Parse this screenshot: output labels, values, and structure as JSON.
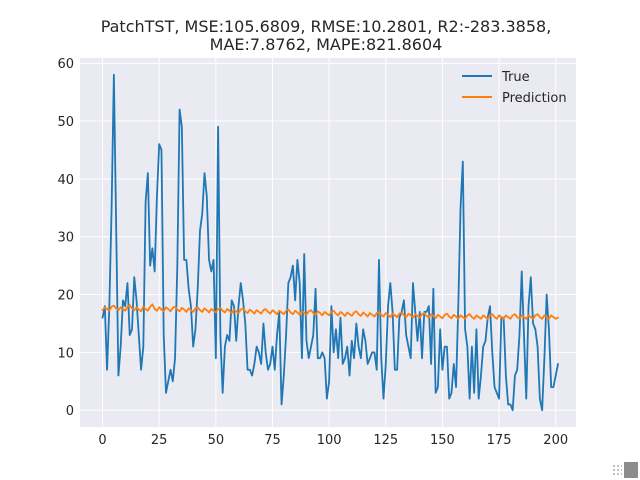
{
  "chart_data": {
    "type": "line",
    "title_lines": [
      "PatchTST, MSE:105.6809, RMSE:10.2801, R2:-283.3858,",
      "MAE:7.8762, MAPE:821.8604"
    ],
    "xlabel": "",
    "ylabel": "",
    "xlim": [
      -9.95,
      208.95
    ],
    "ylim": [
      -2.9,
      60.9
    ],
    "xticks": [
      0,
      25,
      50,
      75,
      100,
      125,
      150,
      175,
      200
    ],
    "yticks": [
      0,
      10,
      20,
      30,
      40,
      50,
      60
    ],
    "grid": true,
    "legend_position": "top-right",
    "colors": {
      "True": "#1f77b4",
      "Prediction": "#ff7f0e",
      "plot_background": "#eaeaf2",
      "grid": "#ffffff"
    },
    "series": [
      {
        "name": "True",
        "values": [
          16,
          18,
          7,
          18,
          35,
          58,
          32,
          6,
          11,
          19,
          18,
          22,
          13,
          14,
          23,
          19,
          13,
          7,
          11,
          36,
          41,
          25,
          28,
          24,
          37,
          46,
          45,
          13,
          3,
          5,
          7,
          5,
          9,
          25,
          52,
          49,
          26,
          26,
          21,
          18,
          11,
          14,
          21,
          31,
          34,
          41,
          37,
          26,
          24,
          26,
          9,
          49,
          13,
          3,
          11,
          13,
          12,
          19,
          18,
          12,
          18,
          22,
          19,
          15,
          7,
          7,
          6,
          8,
          11,
          10,
          8,
          15,
          10,
          7,
          8,
          11,
          7,
          13,
          17,
          1,
          6,
          13,
          22,
          23,
          25,
          19,
          26,
          22,
          9,
          27,
          12,
          9,
          11,
          13,
          21,
          9,
          9,
          10,
          9,
          2,
          5,
          18,
          10,
          14,
          9,
          16,
          8,
          9,
          11,
          6,
          12,
          9,
          15,
          11,
          9,
          14,
          12,
          8,
          9,
          10,
          10,
          7,
          26,
          9,
          2,
          8,
          18,
          22,
          17,
          7,
          7,
          16,
          17,
          19,
          13,
          11,
          9,
          22,
          17,
          12,
          17,
          9,
          17,
          17,
          18,
          8,
          21,
          3,
          4,
          14,
          7,
          11,
          11,
          2,
          3,
          8,
          4,
          18,
          35,
          43,
          14,
          11,
          2,
          11,
          3,
          14,
          2,
          6,
          11,
          12,
          16,
          18,
          10,
          4,
          3,
          2,
          16,
          16,
          6,
          1,
          1,
          0,
          6,
          7,
          13,
          24,
          13,
          2,
          18,
          23,
          15,
          14,
          11,
          2,
          0,
          9,
          20,
          14,
          4,
          4,
          6,
          8
        ]
      },
      {
        "name": "Prediction",
        "values": [
          17.3,
          17.8,
          17.5,
          17.2,
          17.9,
          18.1,
          17.6,
          17.3,
          17.8,
          17.5,
          17.2,
          17.9,
          18.2,
          17.6,
          17.3,
          17.8,
          17.4,
          17.1,
          17.9,
          17.5,
          17.2,
          17.9,
          18.3,
          17.5,
          17.2,
          17.8,
          17.4,
          17.1,
          17.8,
          17.5,
          17.1,
          17.7,
          17.9,
          17.4,
          17.1,
          17.7,
          17.4,
          17.0,
          17.6,
          17.3,
          17.0,
          17.6,
          17.8,
          17.3,
          17.0,
          17.6,
          17.3,
          16.9,
          17.5,
          17.2,
          16.9,
          17.5,
          17.7,
          17.2,
          16.9,
          17.5,
          17.2,
          16.8,
          17.4,
          17.1,
          16.8,
          17.4,
          17.6,
          17.1,
          16.8,
          17.4,
          17.1,
          16.7,
          17.3,
          17.0,
          16.7,
          17.3,
          17.5,
          17.0,
          16.7,
          17.3,
          17.0,
          16.6,
          17.2,
          16.9,
          16.6,
          17.2,
          17.4,
          16.9,
          16.6,
          17.2,
          16.9,
          16.5,
          17.1,
          16.8,
          16.5,
          17.1,
          17.3,
          16.8,
          16.5,
          17.1,
          16.8,
          16.4,
          17.0,
          16.7,
          16.4,
          17.0,
          17.2,
          16.7,
          16.4,
          17.0,
          16.7,
          16.3,
          16.9,
          16.6,
          16.3,
          16.9,
          17.1,
          16.6,
          16.3,
          16.9,
          16.6,
          16.2,
          16.8,
          16.5,
          16.2,
          16.8,
          17.0,
          16.5,
          16.2,
          16.8,
          16.5,
          16.1,
          16.7,
          16.4,
          16.1,
          16.7,
          16.9,
          16.4,
          16.1,
          16.7,
          16.4,
          16.0,
          16.6,
          16.3,
          16.0,
          16.6,
          16.8,
          16.3,
          16.0,
          16.6,
          16.3,
          15.9,
          16.5,
          16.2,
          15.9,
          16.5,
          16.7,
          16.2,
          15.9,
          16.5,
          16.2,
          15.8,
          16.4,
          16.1,
          15.8,
          16.4,
          16.6,
          16.1,
          15.8,
          16.4,
          16.1,
          15.8,
          16.4,
          16.1,
          15.8,
          16.4,
          16.6,
          16.1,
          15.8,
          16.4,
          16.1,
          15.8,
          16.4,
          16.1,
          15.8,
          16.4,
          16.6,
          16.1,
          15.8,
          16.4,
          16.1,
          15.8,
          16.4,
          16.1,
          15.8,
          16.4,
          16.6,
          16.1,
          15.8,
          16.4,
          16.1,
          15.8,
          16.4,
          16.1,
          15.8,
          16.0
        ]
      }
    ]
  }
}
